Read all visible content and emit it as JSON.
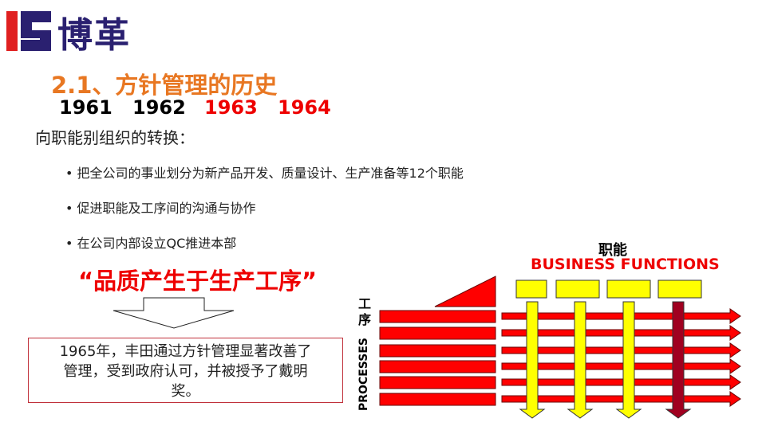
{
  "logo": {
    "text": "博革",
    "colors": {
      "red": "#e02020",
      "navy": "#2a2070"
    }
  },
  "title": "2.1、方针管理的历史",
  "years": [
    {
      "label": "1961",
      "color": "#000000"
    },
    {
      "label": "1962",
      "color": "#000000"
    },
    {
      "label": "1963",
      "color": "#e00000"
    },
    {
      "label": "1964",
      "color": "#e00000"
    }
  ],
  "subtitle": "向职能别组织的转换：",
  "bullets": [
    "• 把全公司的事业划分为新产品开发、质量设计、生产准备等12个职能",
    "• 促进职能及工序间的沟通与协作",
    "• 在公司内部设立QC推进本部"
  ],
  "quote": "“品质产生于生产工序”",
  "note": "1965年，丰田通过方针管理显著改善了管理，受到政府认可，并被授予了戴明奖。",
  "diagram": {
    "processes_cn": "工序",
    "processes_en": "PROCESSES",
    "functions_cn": "职能",
    "functions_en": "BUSINESS  FUNCTIONS",
    "colors": {
      "process": "#ff0000",
      "function": "#ffff00",
      "highlight": "#a00020"
    }
  }
}
